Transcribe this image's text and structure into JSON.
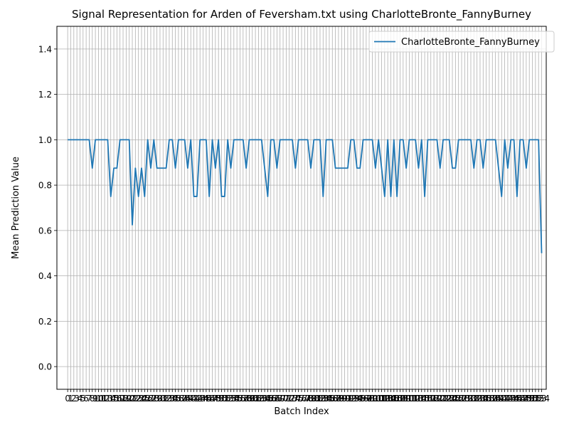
{
  "chart_data": {
    "type": "line",
    "title": "Signal Representation for Arden of Feversham.txt using CharlotteBronte_FannyBurney",
    "xlabel": "Batch Index",
    "ylabel": "Mean Prediction Value",
    "xlim": [
      0,
      153
    ],
    "ylim": [
      -0.1,
      1.5
    ],
    "yticks": [
      0.0,
      0.2,
      0.4,
      0.6,
      0.8,
      1.0,
      1.2,
      1.4
    ],
    "grid": true,
    "legend_position": "top-right",
    "series": [
      {
        "name": "CharlotteBronte_FannyBurney",
        "color": "#1f77b4",
        "values": [
          1,
          1,
          1,
          1,
          1,
          1,
          1,
          1,
          0.875,
          1,
          1,
          1,
          1,
          1,
          0.75,
          0.875,
          0.875,
          1,
          1,
          1,
          1,
          0.625,
          0.875,
          0.75,
          0.875,
          0.75,
          1,
          0.875,
          1,
          0.875,
          0.875,
          0.875,
          0.875,
          1,
          1,
          0.875,
          1,
          1,
          1,
          0.875,
          1,
          0.75,
          0.75,
          1,
          1,
          1,
          0.75,
          1,
          0.875,
          1,
          0.75,
          0.75,
          1,
          0.875,
          1,
          1,
          1,
          1,
          0.875,
          1,
          1,
          1,
          1,
          1,
          0.875,
          0.75,
          1,
          1,
          0.875,
          1,
          1,
          1,
          1,
          1,
          0.875,
          1,
          1,
          1,
          1,
          0.875,
          1,
          1,
          1,
          0.75,
          1,
          1,
          1,
          0.875,
          0.875,
          0.875,
          0.875,
          0.875,
          1,
          1,
          0.875,
          0.875,
          1,
          1,
          1,
          1,
          0.875,
          1,
          0.875,
          0.75,
          1,
          0.75,
          1,
          0.75,
          1,
          1,
          0.875,
          1,
          1,
          1,
          0.875,
          1,
          0.75,
          1,
          1,
          1,
          1,
          0.875,
          1,
          1,
          1,
          0.875,
          0.875,
          1,
          1,
          1,
          1,
          1,
          0.875,
          1,
          1,
          0.875,
          1,
          1,
          1,
          1,
          0.875,
          0.75,
          1,
          0.875,
          1,
          1,
          0.75,
          1,
          1,
          0.875,
          1,
          1,
          1,
          1,
          0.5
        ]
      }
    ]
  }
}
